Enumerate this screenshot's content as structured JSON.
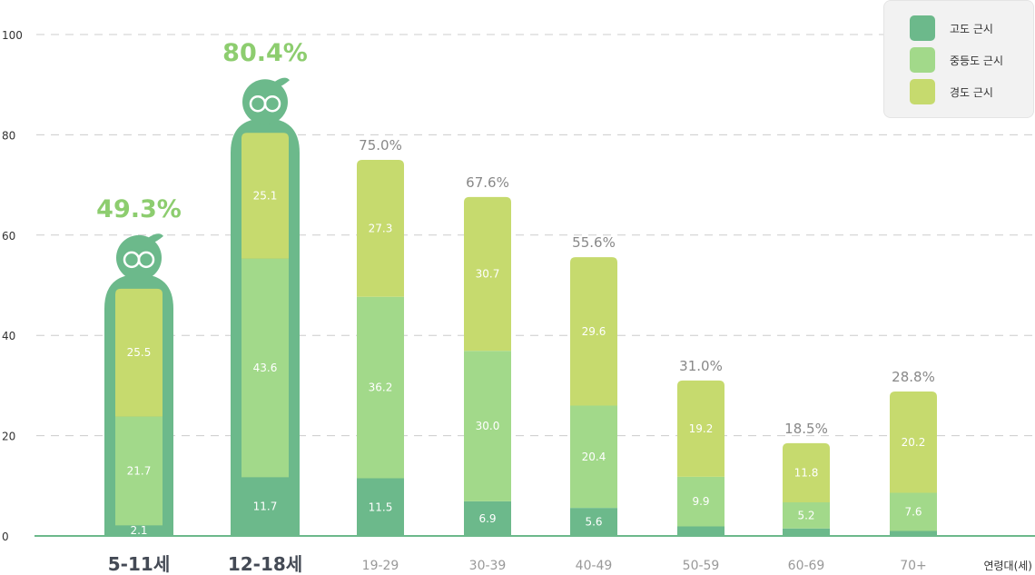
{
  "chart_data": {
    "type": "bar",
    "stacked": true,
    "xlabel": "연령대(세)",
    "ylim": [
      0,
      100
    ],
    "yticks": [
      "0",
      "20",
      "40",
      "60",
      "80",
      "100"
    ],
    "grid": true,
    "legend_position": "top-right",
    "categories": [
      "5-11세",
      "12-18세",
      "19-29",
      "30-39",
      "40-49",
      "50-59",
      "60-69",
      "70+"
    ],
    "series": [
      {
        "name": "고도 근시",
        "color": "#6cb98b",
        "values": [
          2.1,
          11.7,
          11.5,
          6.9,
          5.6,
          1.9,
          1.5,
          1.0
        ],
        "labels": [
          "2.1",
          "11.7",
          "11.5",
          "6.9",
          "5.6",
          "",
          "",
          ""
        ]
      },
      {
        "name": "중등도 근시",
        "color": "#a2d98a",
        "values": [
          21.7,
          43.6,
          36.2,
          30.0,
          20.4,
          9.9,
          5.2,
          7.6
        ],
        "labels": [
          "21.7",
          "43.6",
          "36.2",
          "30.0",
          "20.4",
          "9.9",
          "5.2",
          "7.6"
        ]
      },
      {
        "name": "경도 근시",
        "color": "#c6da6e",
        "values": [
          25.5,
          25.1,
          27.3,
          30.7,
          29.6,
          19.2,
          11.8,
          20.2
        ],
        "labels": [
          "25.5",
          "25.1",
          "27.3",
          "30.7",
          "29.6",
          "19.2",
          "11.8",
          "20.2"
        ]
      }
    ],
    "totals": [
      "49.3%",
      "80.4%",
      "75.0%",
      "67.6%",
      "55.6%",
      "31.0%",
      "18.5%",
      "28.8%"
    ],
    "total_values": [
      49.3,
      80.4,
      75.0,
      67.6,
      55.6,
      31.0,
      18.5,
      28.8
    ],
    "highlighted_categories": [
      0,
      1
    ],
    "colors": {
      "highlight_outline": "#6cb98b",
      "highlight_total": "#8dcd6f",
      "total_text": "#888888",
      "axis_text": "#333333",
      "tick_text": "#999999",
      "highlight_tick_text": "#444a55",
      "grid": "#cccccc",
      "baseline": "#6cb98b",
      "value_text": "#ffffff"
    }
  }
}
